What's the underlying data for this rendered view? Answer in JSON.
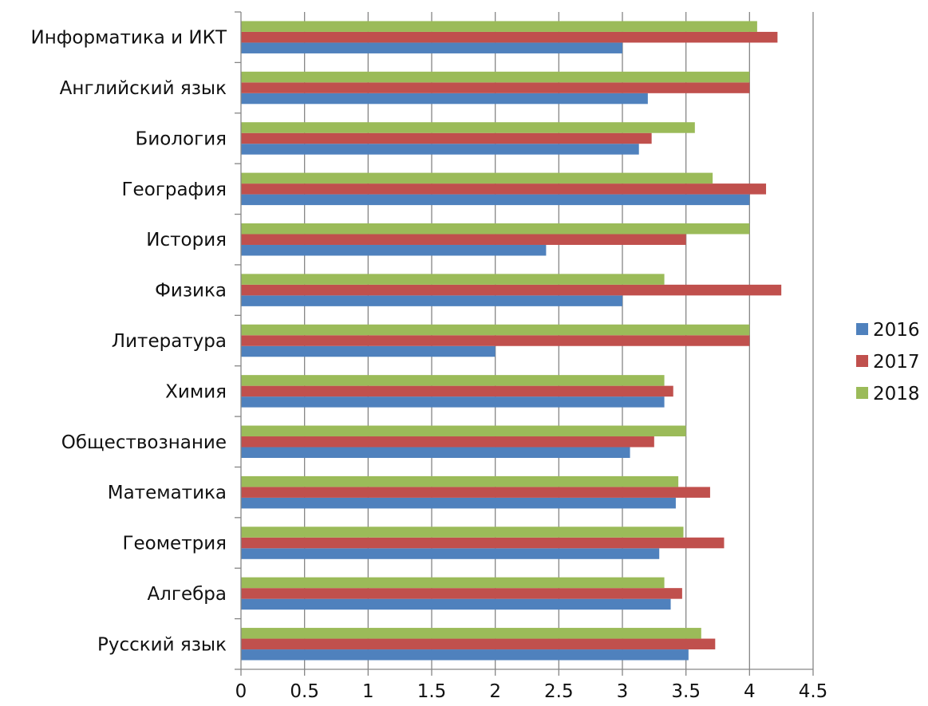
{
  "chart_data": {
    "type": "bar",
    "orientation": "horizontal",
    "categories": [
      "Русский язык",
      "Алгебра",
      "Геометрия",
      "Математика",
      "Обществознание",
      "Химия",
      "Литература",
      "Физика",
      "История",
      "География",
      "Биология",
      "Английский язык",
      "Информатика и ИКТ"
    ],
    "series": [
      {
        "name": "2016",
        "color": "#4F81BD",
        "values": [
          3.52,
          3.38,
          3.29,
          3.42,
          3.06,
          3.33,
          2.0,
          3.0,
          2.4,
          4.0,
          3.13,
          3.2,
          3.0
        ]
      },
      {
        "name": "2017",
        "color": "#C0504D",
        "values": [
          3.73,
          3.47,
          3.8,
          3.69,
          3.25,
          3.4,
          4.0,
          4.25,
          3.5,
          4.13,
          3.23,
          4.0,
          4.22
        ]
      },
      {
        "name": "2018",
        "color": "#9BBB59",
        "values": [
          3.62,
          3.33,
          3.48,
          3.44,
          3.5,
          3.33,
          4.0,
          3.33,
          4.0,
          3.71,
          3.57,
          4.0,
          4.06
        ]
      }
    ],
    "xlim": [
      0,
      4.5
    ],
    "ticks": [
      "0",
      "0.5",
      "1",
      "1.5",
      "2",
      "2.5",
      "3",
      "3.5",
      "4",
      "4.5"
    ],
    "title": "",
    "xlabel": "",
    "ylabel": "",
    "grid": true,
    "legend": "right"
  }
}
